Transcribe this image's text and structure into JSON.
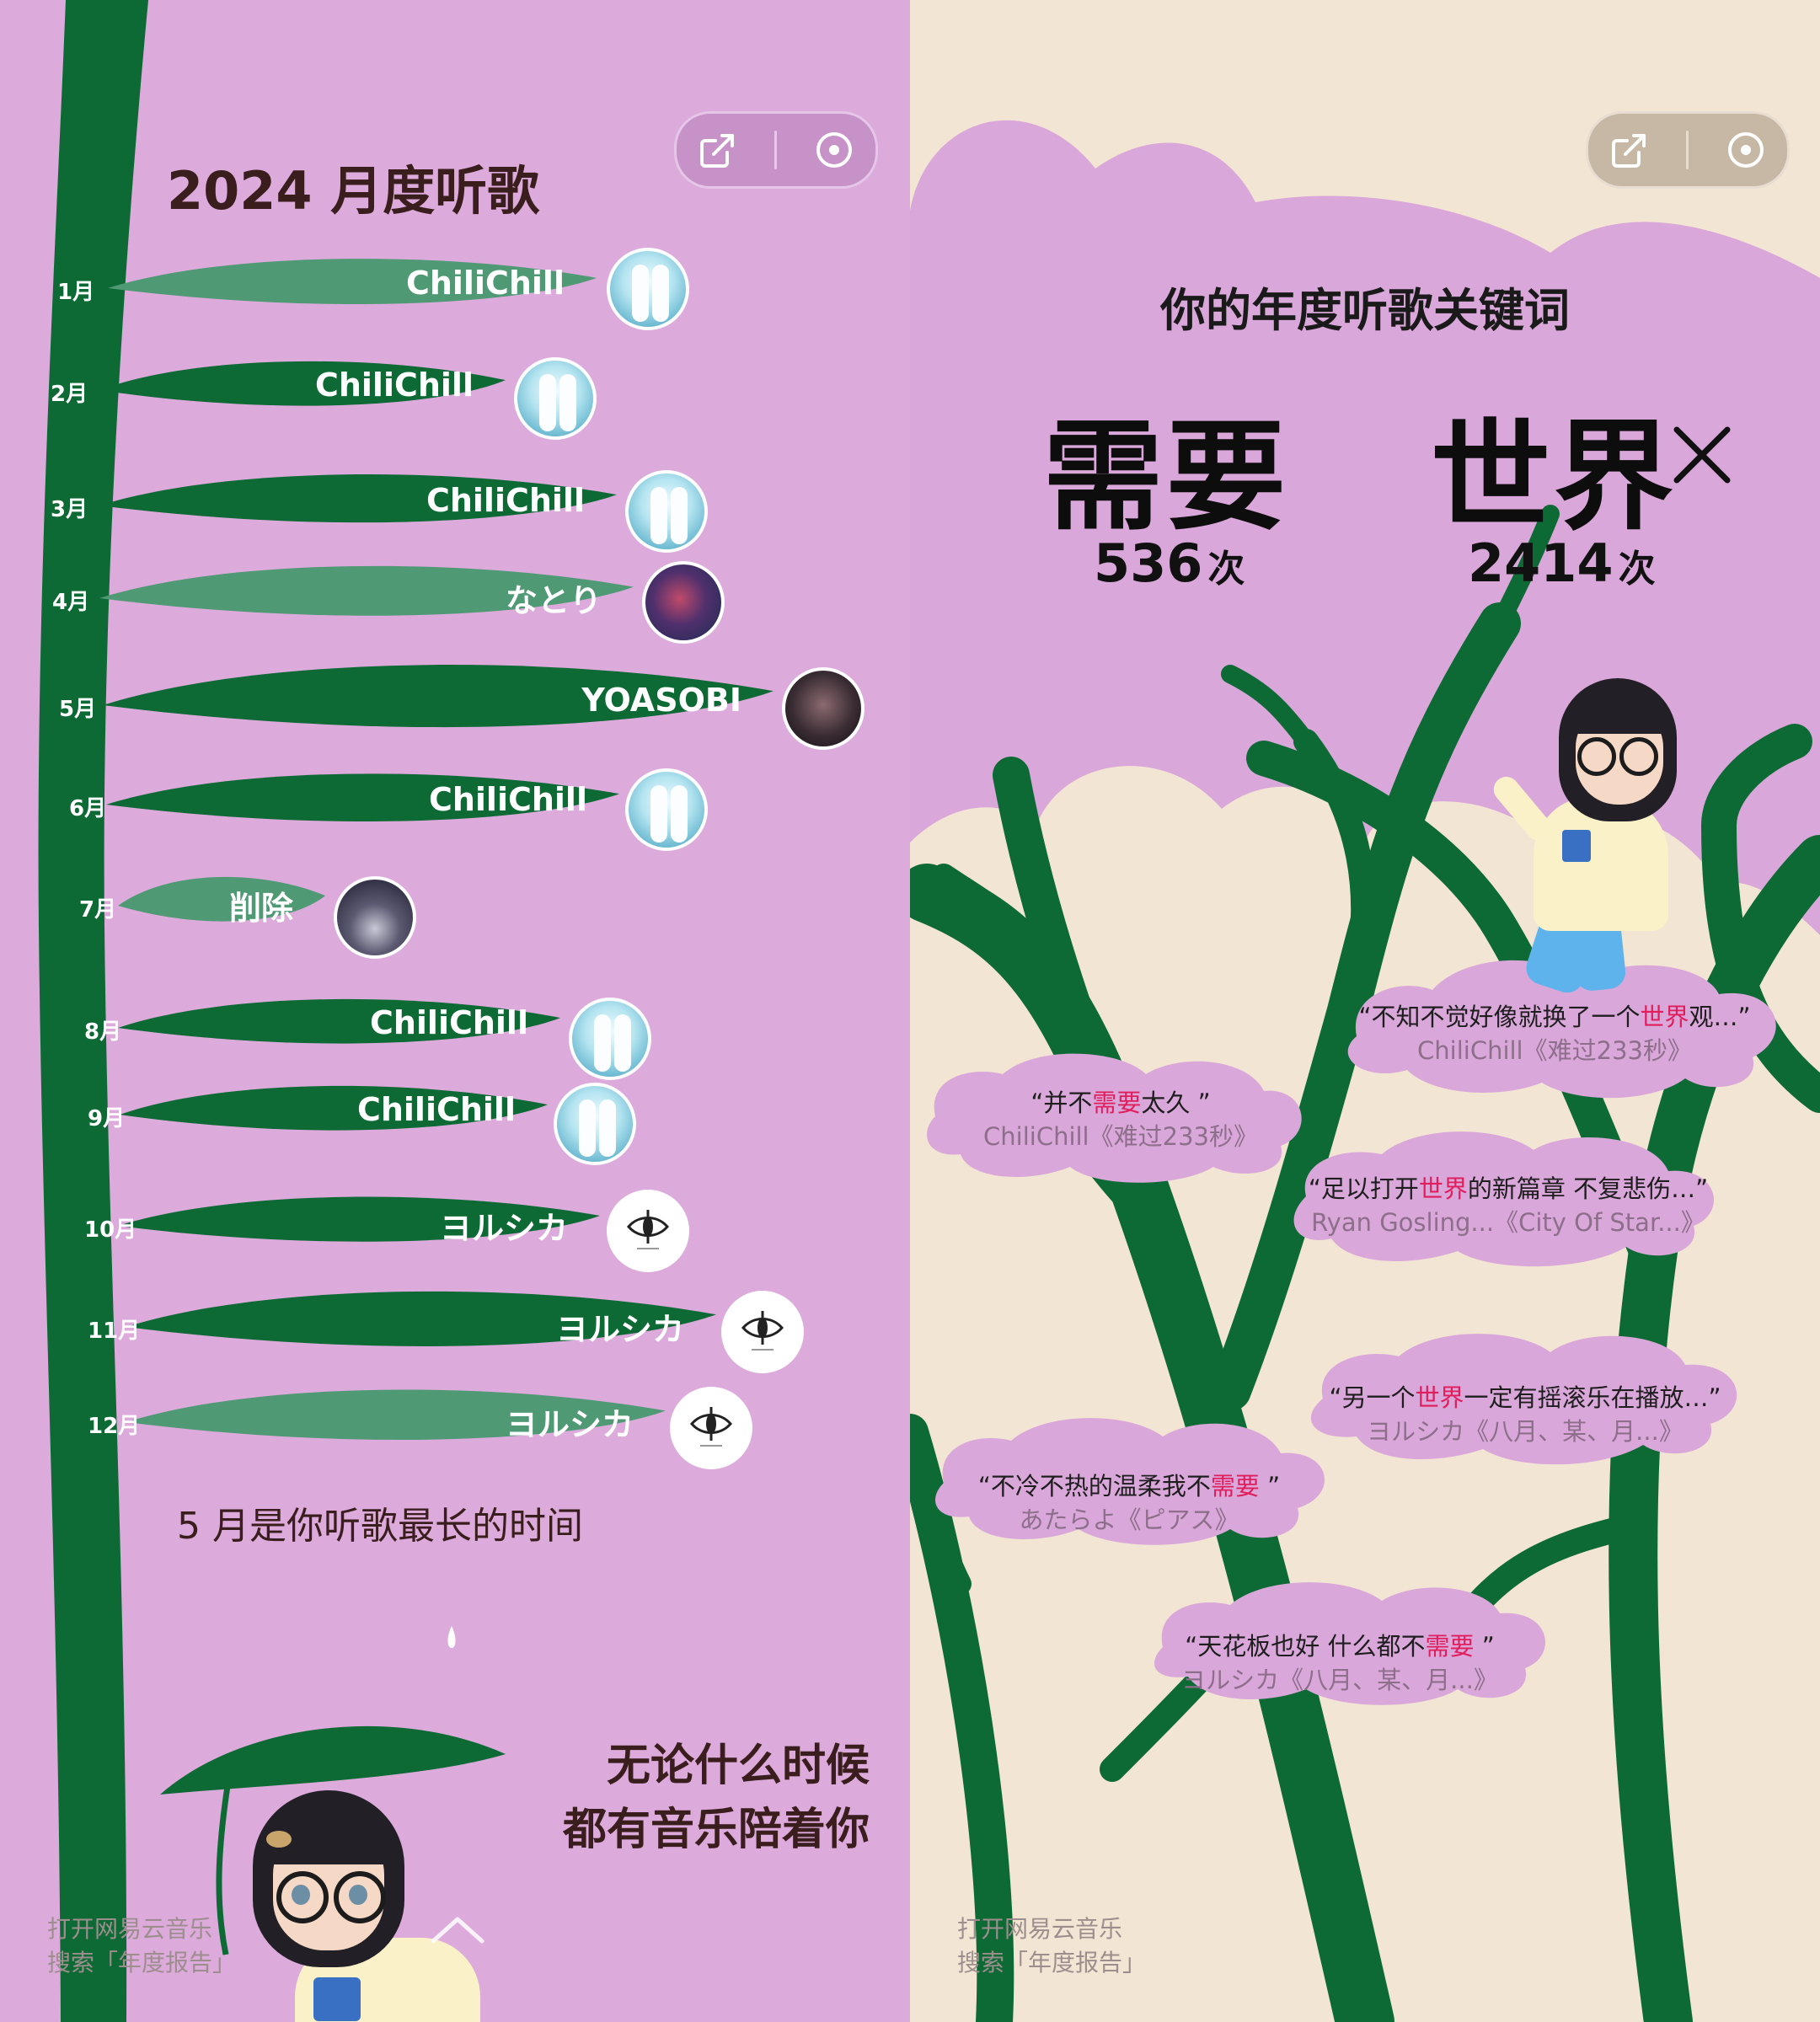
{
  "left": {
    "title": "2024 月度听歌",
    "toolbar": {
      "share_icon": "share-icon",
      "record_icon": "record-icon"
    },
    "months": [
      {
        "month": "1月",
        "artist": "ChiliChill",
        "avatar": "chilichill"
      },
      {
        "month": "2月",
        "artist": "ChiliChill",
        "avatar": "chilichill"
      },
      {
        "month": "3月",
        "artist": "ChiliChill",
        "avatar": "chilichill"
      },
      {
        "month": "4月",
        "artist": "なとり",
        "avatar": "natori"
      },
      {
        "month": "5月",
        "artist": "YOASOBI",
        "avatar": "yoasobi"
      },
      {
        "month": "6月",
        "artist": "ChiliChill",
        "avatar": "chilichill"
      },
      {
        "month": "7月",
        "artist": "削除",
        "avatar": "sakujo"
      },
      {
        "month": "8月",
        "artist": "ChiliChill",
        "avatar": "chilichill"
      },
      {
        "month": "9月",
        "artist": "ChiliChill",
        "avatar": "chilichill"
      },
      {
        "month": "10月",
        "artist": "ヨルシカ",
        "avatar": "yorushika"
      },
      {
        "month": "11月",
        "artist": "ヨルシカ",
        "avatar": "yorushika"
      },
      {
        "month": "12月",
        "artist": "ヨルシカ",
        "avatar": "yorushika"
      }
    ],
    "peak_text": "5 月是你听歌最长的时间",
    "closing": {
      "line1": "无论什么时候",
      "line2": "都有音乐陪着你"
    },
    "footer": {
      "line1": "打开网易云音乐",
      "line2": "搜索「年度报告」"
    }
  },
  "right": {
    "heading": "你的年度听歌关键词",
    "keywords": [
      {
        "word": "需要",
        "count": "536",
        "unit": "次"
      },
      {
        "word": "世界",
        "count": "2414",
        "unit": "次"
      }
    ],
    "quotes": [
      {
        "pre": "“不知不觉好像就换了一个",
        "hl": "世界",
        "post": "观…”",
        "source": "ChiliChill《难过233秒》"
      },
      {
        "pre": "“并不",
        "hl": "需要",
        "post": "太久 ”",
        "source": "ChiliChill《难过233秒》"
      },
      {
        "pre": "“足以打开",
        "hl": "世界",
        "post": "的新篇章 不复悲伤…”",
        "source": "Ryan Gosling...《City Of Star...》"
      },
      {
        "pre": "“另一个",
        "hl": "世界",
        "post": "一定有摇滚乐在播放…”",
        "source": "ヨルシカ《八月、某、月...》"
      },
      {
        "pre": "“不冷不热的温柔我不",
        "hl": "需要",
        "post": " ”",
        "source": "あたらよ《ピアス》"
      },
      {
        "pre": "“天花板也好 什么都不",
        "hl": "需要",
        "post": " ”",
        "source": "ヨルシカ《八月、某、月...》"
      }
    ],
    "footer": {
      "line1": "打开网易云音乐",
      "line2": "搜索「年度报告」"
    }
  },
  "colors": {
    "left_bg": "#dcaadb",
    "right_bg": "#f2e5d4",
    "dark_green": "#0e6a35",
    "light_green": "#4f9a75",
    "highlight": "#e21d5c"
  }
}
